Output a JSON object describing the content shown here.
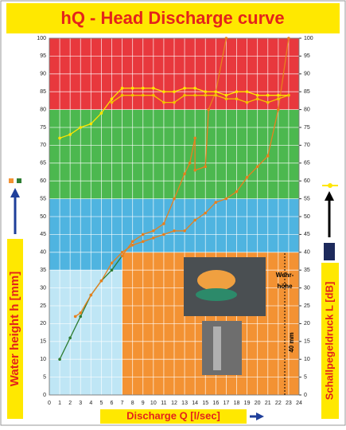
{
  "chart_data": {
    "type": "line",
    "title": "hQ - Head Discharge curve",
    "xlabel": "Discharge Q [l/sec]",
    "ylabel": "Water height h [mm]",
    "y2label": "Schallpegeldruck L [dB]",
    "annotations": [
      "Wehr-",
      "höhe",
      "40 mm"
    ],
    "xlim": [
      0,
      24
    ],
    "xticks": [
      0,
      1,
      2,
      3,
      4,
      5,
      6,
      7,
      8,
      9,
      10,
      11,
      12,
      13,
      14,
      15,
      16,
      17,
      18,
      19,
      20,
      21,
      22,
      23,
      24
    ],
    "ylim": [
      0,
      100
    ],
    "yticks": [
      0,
      5,
      10,
      15,
      20,
      25,
      30,
      35,
      40,
      45,
      50,
      55,
      60,
      65,
      70,
      75,
      80,
      85,
      90,
      95,
      100
    ],
    "y2lim": [
      0,
      100
    ],
    "y2ticks": [
      0,
      5,
      10,
      15,
      20,
      25,
      30,
      35,
      40,
      45,
      50,
      55,
      60,
      65,
      70,
      75,
      80,
      85,
      90,
      95,
      100
    ],
    "grid": true,
    "bands": [
      {
        "xlim": [
          0,
          24
        ],
        "ylim": [
          80,
          100
        ],
        "color": "#e8383d"
      },
      {
        "xlim": [
          0,
          24
        ],
        "ylim": [
          55,
          80
        ],
        "color": "#4cb84f"
      },
      {
        "xlim": [
          0,
          24
        ],
        "ylim": [
          35,
          55
        ],
        "color": "#4fb4e0"
      },
      {
        "xlim": [
          0,
          7
        ],
        "ylim": [
          0,
          35
        ],
        "color": "#bfe6f5"
      },
      {
        "xlim": [
          7,
          24
        ],
        "ylim": [
          0,
          40
        ],
        "color": "#f39233"
      }
    ],
    "series": [
      {
        "color": "#2e7d32",
        "x": [
          1,
          2,
          3,
          4,
          5,
          6,
          7
        ],
        "values": [
          10,
          16,
          22,
          28,
          32,
          35,
          39
        ]
      },
      {
        "color": "#e8801e",
        "x": [
          2.5,
          3,
          4,
          5,
          6,
          7,
          8,
          9,
          10,
          11,
          12,
          13,
          14,
          15,
          16,
          17,
          18,
          19,
          20,
          21,
          22,
          23
        ],
        "values": [
          22,
          23,
          28,
          32,
          37,
          40,
          42,
          43,
          44,
          45,
          46,
          46,
          49,
          51,
          54,
          55,
          57,
          61,
          64,
          67,
          80,
          100
        ]
      },
      {
        "color": "#e8801e",
        "x": [
          7,
          8,
          9,
          10,
          11,
          12,
          13,
          13.5,
          14,
          14,
          15,
          15.3,
          16,
          17
        ],
        "values": [
          39,
          43,
          45,
          46,
          48,
          55,
          62,
          65,
          72,
          63,
          64,
          80,
          85,
          100
        ]
      },
      {
        "color": "#ffe600",
        "axis": "y2",
        "x": [
          1,
          2,
          3,
          4,
          5,
          6,
          7,
          8,
          9,
          10,
          11,
          12,
          13,
          14,
          15,
          16,
          17,
          18,
          19,
          20,
          21,
          22,
          23
        ],
        "values": [
          72,
          73,
          75,
          76,
          79,
          83,
          86,
          86,
          86,
          86,
          85,
          85,
          86,
          86,
          85,
          85,
          84,
          85,
          85,
          84,
          84,
          84,
          84
        ]
      },
      {
        "color": "#f5c400",
        "axis": "y2",
        "x": [
          6,
          7,
          8,
          9,
          10,
          11,
          12,
          13,
          14,
          15,
          16,
          17,
          18,
          19,
          20,
          21,
          22,
          23
        ],
        "values": [
          82,
          84,
          84,
          84,
          84,
          82,
          82,
          84,
          84,
          84,
          84,
          83,
          83,
          82,
          83,
          82,
          83,
          84
        ]
      }
    ]
  }
}
